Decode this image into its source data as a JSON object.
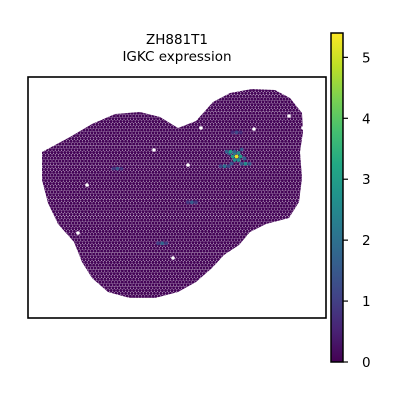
{
  "chart_data": {
    "type": "heatmap",
    "title_line1": "ZH881T1",
    "title_line2": "IGKC expression",
    "xlabel": "",
    "ylabel": "",
    "colorbar": {
      "colormap": "viridis",
      "range": [
        0,
        5.4
      ],
      "ticks": [
        0,
        1,
        2,
        3,
        4,
        5
      ],
      "tick_labels": [
        "0",
        "1",
        "2",
        "3",
        "4",
        "5"
      ]
    },
    "background_value": 0.05,
    "hotspots": [
      {
        "x": 0.7,
        "y": 0.33,
        "value": 5.2
      },
      {
        "x": 0.68,
        "y": 0.31,
        "value": 3.0
      },
      {
        "x": 0.73,
        "y": 0.36,
        "value": 2.6
      },
      {
        "x": 0.66,
        "y": 0.37,
        "value": 2.0
      },
      {
        "x": 0.55,
        "y": 0.52,
        "value": 1.6
      },
      {
        "x": 0.45,
        "y": 0.69,
        "value": 1.8
      },
      {
        "x": 0.7,
        "y": 0.23,
        "value": 1.2
      },
      {
        "x": 0.3,
        "y": 0.38,
        "value": 1.5
      }
    ],
    "grid": false,
    "legend": "none"
  },
  "colors": {
    "axes_frame": "#000000",
    "viridis": [
      "#440154",
      "#482475",
      "#414487",
      "#355f8d",
      "#2a788e",
      "#21918c",
      "#22a884",
      "#44bf70",
      "#7ad151",
      "#bddf26",
      "#fde725"
    ]
  }
}
